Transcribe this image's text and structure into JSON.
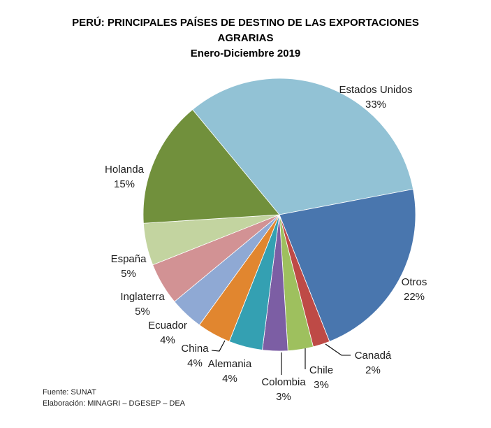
{
  "title": {
    "line1": "PERÚ: PRINCIPALES  PAÍSES DE DESTINO DE LAS EXPORTACIONES",
    "line2": "AGRARIAS",
    "subtitle": "Enero-Diciembre 2019"
  },
  "footer": {
    "line1": "Fuente: SUNAT",
    "line2": "Elaboración: MINAGRI – DGESEP – DEA"
  },
  "chart_data": {
    "type": "pie",
    "title": "PERÚ: PRINCIPALES PAÍSES DE DESTINO DE LAS EXPORTACIONES AGRARIAS",
    "subtitle": "Enero-Diciembre 2019",
    "unit": "percent",
    "start_angle_deg": -39.6,
    "direction": "clockwise",
    "legend": "none",
    "label_style": "category-name-and-percent-outside",
    "slices": [
      {
        "name": "Estados Unidos",
        "value": 33,
        "pct_label": "33%",
        "color": "#92C2D5"
      },
      {
        "name": "Otros",
        "value": 22,
        "pct_label": "22%",
        "color": "#4976AE"
      },
      {
        "name": "Canadá",
        "value": 2,
        "pct_label": "2%",
        "color": "#BE4A46"
      },
      {
        "name": "Chile",
        "value": 3,
        "pct_label": "3%",
        "color": "#9EC05E"
      },
      {
        "name": "Colombia",
        "value": 3,
        "pct_label": "3%",
        "color": "#7C5EA4"
      },
      {
        "name": "Alemania",
        "value": 4,
        "pct_label": "4%",
        "color": "#34A0B2"
      },
      {
        "name": "China",
        "value": 4,
        "pct_label": "4%",
        "color": "#E1862F"
      },
      {
        "name": "Ecuador",
        "value": 4,
        "pct_label": "4%",
        "color": "#8FA9D4"
      },
      {
        "name": "Inglaterra",
        "value": 5,
        "pct_label": "5%",
        "color": "#D29294"
      },
      {
        "name": "España",
        "value": 5,
        "pct_label": "5%",
        "color": "#C3D4A0"
      },
      {
        "name": "Holanda",
        "value": 15,
        "pct_label": "15%",
        "color": "#71903C"
      }
    ]
  }
}
